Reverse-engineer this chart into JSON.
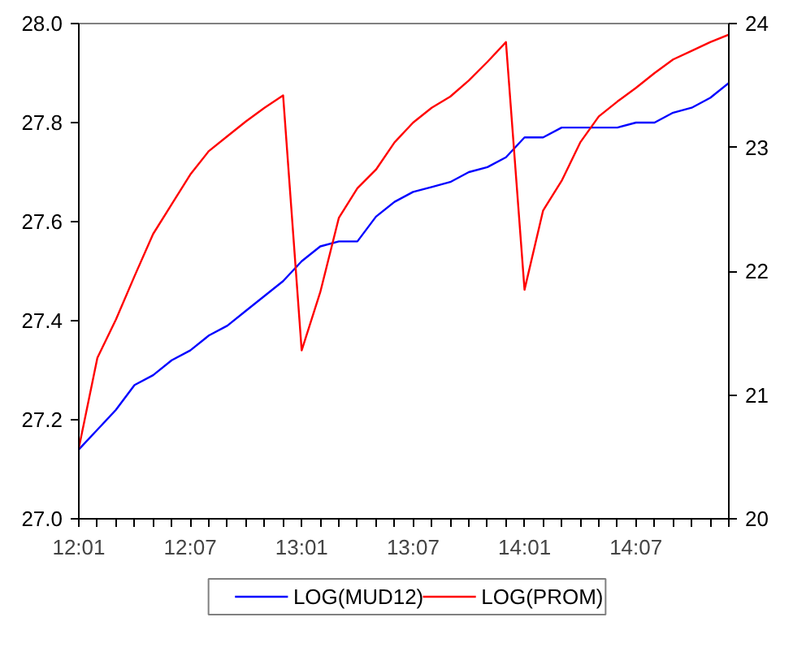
{
  "chart_data": {
    "type": "line",
    "categories": [
      "12:01",
      null,
      null,
      null,
      null,
      null,
      "12:07",
      null,
      null,
      null,
      null,
      null,
      "13:01",
      null,
      null,
      null,
      null,
      null,
      "13:07",
      null,
      null,
      null,
      null,
      null,
      "14:01",
      null,
      null,
      null,
      null,
      null,
      "14:07",
      null,
      null,
      null,
      null,
      null
    ],
    "series": [
      {
        "name": "LOG(MUD12)",
        "color": "#0000ff",
        "values": [
          27.14,
          27.18,
          27.22,
          27.27,
          27.29,
          27.32,
          27.34,
          27.37,
          27.39,
          27.42,
          27.45,
          27.48,
          27.52,
          27.55,
          27.56,
          27.56,
          27.61,
          27.64,
          27.66,
          27.67,
          27.68,
          27.7,
          27.71,
          27.73,
          27.77,
          27.77,
          27.79,
          27.79,
          27.79,
          27.79,
          27.8,
          27.8,
          27.82,
          27.83,
          27.85,
          27.88
        ]
      },
      {
        "name": "LOG(PROM)",
        "color": "#ff0000",
        "axis": "y2",
        "values": [
          20.57,
          21.3,
          21.61,
          21.96,
          22.3,
          22.54,
          22.78,
          22.97,
          23.09,
          23.21,
          23.32,
          23.42,
          21.36,
          21.83,
          22.43,
          22.67,
          22.82,
          23.04,
          23.2,
          23.32,
          23.41,
          23.54,
          23.69,
          23.85,
          21.85,
          22.49,
          22.73,
          23.04,
          23.25,
          23.37,
          23.48,
          23.6,
          23.71,
          23.78,
          23.85,
          23.91
        ]
      }
    ],
    "ylim": [
      27.0,
      28.0
    ],
    "yticks": [
      {
        "value": 27.0,
        "label": "27.0"
      },
      {
        "value": 27.2,
        "label": "27.2"
      },
      {
        "value": 27.4,
        "label": "27.4"
      },
      {
        "value": 27.6,
        "label": "27.6"
      },
      {
        "value": 27.8,
        "label": "27.8"
      },
      {
        "value": 28.0,
        "label": "28.0"
      }
    ],
    "y2lim": [
      20,
      24
    ],
    "y2ticks": [
      20,
      21,
      22,
      23,
      24
    ],
    "grid": false,
    "legend": "bottom",
    "line_style": "solid"
  }
}
